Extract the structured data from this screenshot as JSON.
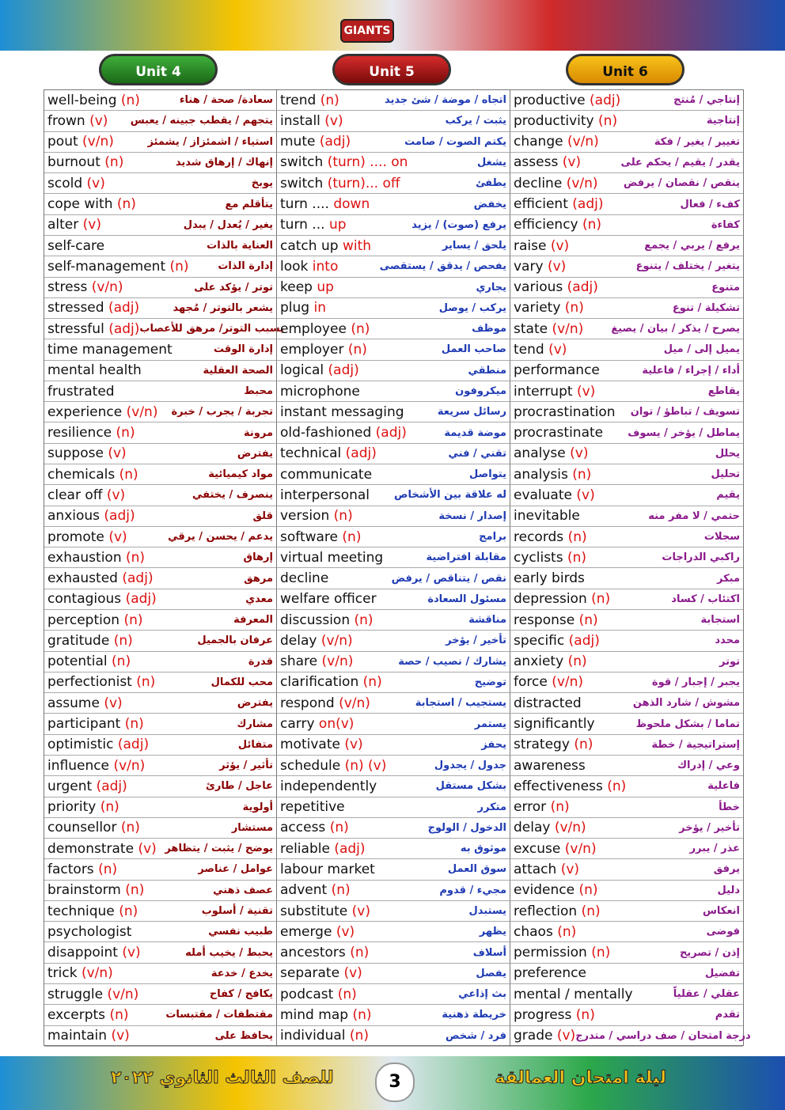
{
  "header": {
    "logo": "GIANTS"
  },
  "units": [
    {
      "title": "Unit 4",
      "rows": [
        {
          "w": "well-being",
          "p": "(n)",
          "m": "سعادة/ صحة / هناء"
        },
        {
          "w": "frown",
          "p": "(v)",
          "m": "يتجهم / يقطب جبينه / يعبس"
        },
        {
          "w": "pout",
          "p": "(v/n)",
          "m": "استياء / اشمئزاز / يشمئز"
        },
        {
          "w": "burnout",
          "p": "(n)",
          "m": "إنهاك / إرهاق شديد"
        },
        {
          "w": "scold",
          "p": "(v)",
          "m": "يوبخ"
        },
        {
          "w": "cope with",
          "p": "(n)",
          "m": "يتأقلم مع"
        },
        {
          "w": "alter",
          "p": "(v)",
          "m": "يغير / يُعدل / يبدل"
        },
        {
          "w": "self-care",
          "m": "العناية بالذات"
        },
        {
          "w": "self-management",
          "p": "(n)",
          "m": "إدارة الذات"
        },
        {
          "w": "stress",
          "p": "(v/n)",
          "m": "توتر / يؤكد على"
        },
        {
          "w": "stressed",
          "p": "(adj)",
          "m": "يشعر بالتوتر / مُجهد"
        },
        {
          "w": "stressful",
          "p": "(adj)",
          "m": "يسبب التوتر/ مرهق للأعصاب"
        },
        {
          "w": "time management",
          "m": "إدارة الوقت"
        },
        {
          "w": "mental health",
          "m": "الصحة العقلية"
        },
        {
          "w": "frustrated",
          "m": "محبط"
        },
        {
          "w": "experience",
          "p": "(v/n)",
          "m": "تجربة / يجرب / خبرة"
        },
        {
          "w": "resilience",
          "p": "(n)",
          "m": "مرونة"
        },
        {
          "w": "suppose",
          "p": "(v)",
          "m": "يفترض"
        },
        {
          "w": "chemicals",
          "p": "(n)",
          "m": "مواد كيميائية"
        },
        {
          "w": "clear off",
          "p": "(v)",
          "m": "ينصرف / يختفي"
        },
        {
          "w": "anxious",
          "p": "(adj)",
          "m": "قلق"
        },
        {
          "w": "promote",
          "p": "(v)",
          "m": "يدعم / يحسن / يرقي"
        },
        {
          "w": "exhaustion",
          "p": "(n)",
          "m": "إرهاق"
        },
        {
          "w": "exhausted",
          "p": "(adj)",
          "m": "مرهق"
        },
        {
          "w": "contagious",
          "p": "(adj)",
          "m": "معدي"
        },
        {
          "w": "perception",
          "p": "(n)",
          "m": "المعرفة"
        },
        {
          "w": "gratitude",
          "p": "(n)",
          "m": "عرفان بالجميل"
        },
        {
          "w": "potential",
          "p": "(n)",
          "m": "قدرة"
        },
        {
          "w": "perfectionist",
          "p": "(n)",
          "m": "محب للكمال"
        },
        {
          "w": "assume",
          "p": "(v)",
          "m": "يفترض"
        },
        {
          "w": "participant",
          "p": "(n)",
          "m": "مشارك"
        },
        {
          "w": "optimistic",
          "p": "(adj)",
          "m": "متفائل"
        },
        {
          "w": "influence",
          "p": "(v/n)",
          "m": "تأثير / يؤثر"
        },
        {
          "w": "urgent",
          "p": "(adj)",
          "m": "عاجل / طارئ"
        },
        {
          "w": "priority",
          "p": "(n)",
          "m": "أولوية"
        },
        {
          "w": "counsellor",
          "p": "(n)",
          "m": "مستشار"
        },
        {
          "w": "demonstrate",
          "p": "(v)",
          "m": "يوضح / يثبت / يتظاهر"
        },
        {
          "w": "factors",
          "p": "(n)",
          "m": "عوامل / عناصر"
        },
        {
          "w": "brainstorm",
          "p": "(n)",
          "m": "عصف ذهني"
        },
        {
          "w": "technique",
          "p": "(n)",
          "m": "تقنية / أسلوب"
        },
        {
          "w": "psychologist",
          "m": "طبيب نفسي"
        },
        {
          "w": "disappoint",
          "p": "(v)",
          "m": "يحبط / يخيب أمله"
        },
        {
          "w": "trick",
          "p": "(v/n)",
          "m": "يخدع / خدعة"
        },
        {
          "w": "struggle",
          "p": "(v/n)",
          "m": "يكافح / كفاح"
        },
        {
          "w": "excerpts",
          "p": "(n)",
          "m": "مقتطفات / مقتبسات"
        },
        {
          "w": "maintain",
          "p": "(v)",
          "m": "يحافظ على"
        }
      ]
    },
    {
      "title": "Unit 5",
      "rows": [
        {
          "w": "trend",
          "p": "(n)",
          "m": "اتجاه / موضة / شئ جديد"
        },
        {
          "w": "install",
          "p": "(v)",
          "m": "يثبت / يركب"
        },
        {
          "w": "mute",
          "p": "(adj)",
          "m": "يكتم الصوت / صامت"
        },
        {
          "w": "switch",
          "p": "(turn) .... on",
          "m": "يشغل"
        },
        {
          "w": "switch",
          "p": "(turn)... off",
          "m": "يطفئ"
        },
        {
          "w": "turn ....",
          "p": "down",
          "m": "يخفض"
        },
        {
          "w": "turn ...",
          "p": "up",
          "m": "يرفع (صوت) / يزيد"
        },
        {
          "w": "catch up",
          "p": "with",
          "m": "يلحق / يساير"
        },
        {
          "w": "look",
          "p": "into",
          "m": "يفحص / يدقق / يستقصى"
        },
        {
          "w": "keep",
          "p": "up",
          "m": "يجاري"
        },
        {
          "w": "plug",
          "p": "in",
          "m": "يركب / يوصل"
        },
        {
          "w": "employee",
          "p": "(n)",
          "m": "موظف"
        },
        {
          "w": "employer",
          "p": "(n)",
          "m": "صاحب العمل"
        },
        {
          "w": "logical",
          "p": "(adj)",
          "m": "منطقي"
        },
        {
          "w": "microphone",
          "m": "ميكروفون"
        },
        {
          "w": "instant messaging",
          "m": "رسائل سريعة"
        },
        {
          "w": "old-fashioned",
          "p": "(adj)",
          "m": "موضة قديمة"
        },
        {
          "w": "technical",
          "p": "(adj)",
          "m": "تقني / فني"
        },
        {
          "w": "communicate",
          "m": "يتواصل"
        },
        {
          "w": "interpersonal",
          "m": "له علاقة بين الأشخاص"
        },
        {
          "w": "version",
          "p": "(n)",
          "m": "إصدار / نسخة"
        },
        {
          "w": "software",
          "p": "(n)",
          "m": "برامج"
        },
        {
          "w": "virtual meeting",
          "m": "مقابلة افتراضية"
        },
        {
          "w": "decline",
          "m": "نقص / يتناقص / يرفض"
        },
        {
          "w": "welfare officer",
          "m": "مسئول السعادة"
        },
        {
          "w": "discussion",
          "p": "(n)",
          "m": "مناقشة"
        },
        {
          "w": "delay",
          "p": "(v/n)",
          "m": "تأخير / يؤخر"
        },
        {
          "w": "share",
          "p": "(v/n)",
          "m": "يشارك / نصيب / حصة"
        },
        {
          "w": "clarification",
          "p": "(n)",
          "m": "توضيح"
        },
        {
          "w": "respond",
          "p": "(v/n)",
          "m": "يستجيب / استجابة"
        },
        {
          "w": "carry",
          "p": "on(v)",
          "m": "يستمر"
        },
        {
          "w": "motivate",
          "p": "(v)",
          "m": "يحفز"
        },
        {
          "w": "schedule",
          "p": "(n) (v)",
          "m": "جدول / يجدول"
        },
        {
          "w": "independently",
          "m": "بشكل مستقل"
        },
        {
          "w": "repetitive",
          "m": "متكرر"
        },
        {
          "w": "access",
          "p": "(n)",
          "m": "الدخول / الولوج"
        },
        {
          "w": "reliable",
          "p": "(adj)",
          "m": "موثوق به"
        },
        {
          "w": "labour market",
          "m": "سوق العمل"
        },
        {
          "w": "advent",
          "p": "(n)",
          "m": "مجيء / قدوم"
        },
        {
          "w": "substitute",
          "p": "(v)",
          "m": "يستبدل"
        },
        {
          "w": "emerge",
          "p": "(v)",
          "m": "يظهر"
        },
        {
          "w": "ancestors",
          "p": "(n)",
          "m": "أسلاف"
        },
        {
          "w": "separate",
          "p": "(v)",
          "m": "يفصل"
        },
        {
          "w": "podcast",
          "p": "(n)",
          "m": "بث إذاعي"
        },
        {
          "w": "mind map",
          "p": "(n)",
          "m": "خريطة ذهنية"
        },
        {
          "w": "individual",
          "p": "(n)",
          "m": "فرد / شخص"
        }
      ]
    },
    {
      "title": "Unit 6",
      "rows": [
        {
          "w": "productive",
          "p": "(adj)",
          "m": "إنتاجي / مُنتج"
        },
        {
          "w": "productivity",
          "p": "(n)",
          "m": "إنتاجية"
        },
        {
          "w": "change",
          "p": "(v/n)",
          "m": "تغيير / يغير / فكة"
        },
        {
          "w": "assess",
          "p": "(v)",
          "m": "يقدر / يقيم / يحكم على"
        },
        {
          "w": "decline",
          "p": "(v/n)",
          "m": "ينقص / نقصان / يرفض"
        },
        {
          "w": "efficient",
          "p": "(adj)",
          "m": "كفء / فعال"
        },
        {
          "w": "efficiency",
          "p": "(n)",
          "m": "كفاءة"
        },
        {
          "w": "raise",
          "p": "(v)",
          "m": "يرفع / يربي / يجمع"
        },
        {
          "w": "vary",
          "p": "(v)",
          "m": "يتغير / يختلف / يتنوع"
        },
        {
          "w": "various",
          "p": "(adj)",
          "m": "متنوع"
        },
        {
          "w": "variety",
          "p": "(n)",
          "m": "تشكيلة / تنوع"
        },
        {
          "w": "state",
          "p": "(v/n)",
          "m": "يصرح / يذكر / بيان / يصيغ"
        },
        {
          "w": "tend",
          "p": "(v)",
          "m": "يميل إلى / ميل"
        },
        {
          "w": "performance",
          "m": "أداء / إجراء / فاعلية"
        },
        {
          "w": "interrupt",
          "p": "(v)",
          "m": "يقاطع"
        },
        {
          "w": "procrastination",
          "m": "تسويف / تباطؤ / توان"
        },
        {
          "w": "procrastinate",
          "m": "يماطل / يؤخر / يسوف"
        },
        {
          "w": "analyse",
          "p": "(v)",
          "m": "يحلل"
        },
        {
          "w": "analysis",
          "p": "(n)",
          "m": "تحليل"
        },
        {
          "w": "evaluate",
          "p": "(v)",
          "m": "يقيم"
        },
        {
          "w": "inevitable",
          "m": "حتمي / لا مفر منه"
        },
        {
          "w": "records",
          "p": "(n)",
          "m": "سجلات"
        },
        {
          "w": "cyclists",
          "p": "(n)",
          "m": "راكبي الدراجات"
        },
        {
          "w": "early birds",
          "m": "مبكر"
        },
        {
          "w": "depression",
          "p": "(n)",
          "m": "اكتئاب / كساد"
        },
        {
          "w": "response",
          "p": "(n)",
          "m": "استجابة"
        },
        {
          "w": "specific",
          "p": "(adj)",
          "m": "محدد"
        },
        {
          "w": "anxiety",
          "p": "(n)",
          "m": "توتر"
        },
        {
          "w": "force",
          "p": "(v/n)",
          "m": "يجبر / إجبار / قوة"
        },
        {
          "w": "distracted",
          "m": "مشوش / شارد الذهن"
        },
        {
          "w": "significantly",
          "m": "تماما / بشكل ملحوظ"
        },
        {
          "w": "strategy",
          "p": "(n)",
          "m": "إستراتيجية / خطة"
        },
        {
          "w": "awareness",
          "m": "وعي / إدراك"
        },
        {
          "w": "effectiveness",
          "p": "(n)",
          "m": "فاعلية"
        },
        {
          "w": "error",
          "p": "(n)",
          "m": "خطأ"
        },
        {
          "w": "delay",
          "p": "(v/n)",
          "m": "تأخير / يؤخر"
        },
        {
          "w": "excuse",
          "p": "(v/n)",
          "m": "عذر / يبرر"
        },
        {
          "w": "attach",
          "p": "(v)",
          "m": "يرفق"
        },
        {
          "w": "evidence",
          "p": "(n)",
          "m": "دليل"
        },
        {
          "w": "reflection",
          "p": "(n)",
          "m": "انعكاس"
        },
        {
          "w": "chaos",
          "p": "(n)",
          "m": "فوضى"
        },
        {
          "w": "permission",
          "p": "(n)",
          "m": "إذن / تصريح"
        },
        {
          "w": "preference",
          "m": "تفضيل"
        },
        {
          "w": "mental / mentally",
          "m": "عقلي / عقلياً"
        },
        {
          "w": "progress",
          "p": "(n)",
          "m": "تقدم"
        },
        {
          "w": "grade",
          "p": "(v)",
          "m": "درجة امتحان / صف دراسي / متدرج"
        }
      ]
    }
  ],
  "footer": {
    "right": "ليلة امتحان العمالقة",
    "page": "3",
    "left": "للصف الثالث الثانوي ٢٠٢٢"
  }
}
